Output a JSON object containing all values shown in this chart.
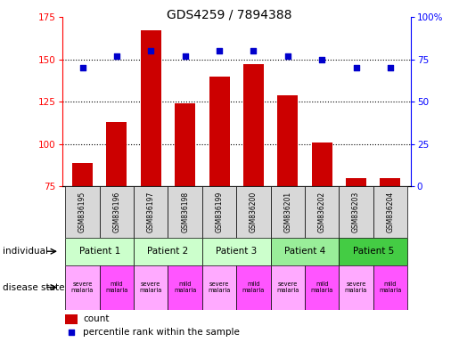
{
  "title": "GDS4259 / 7894388",
  "samples": [
    "GSM836195",
    "GSM836196",
    "GSM836197",
    "GSM836198",
    "GSM836199",
    "GSM836200",
    "GSM836201",
    "GSM836202",
    "GSM836203",
    "GSM836204"
  ],
  "counts": [
    89,
    113,
    167,
    124,
    140,
    147,
    129,
    101,
    80,
    80
  ],
  "percentiles": [
    70,
    77,
    80,
    77,
    80,
    80,
    77,
    75,
    70,
    70
  ],
  "ymin": 75,
  "ymax": 175,
  "yticks_left": [
    75,
    100,
    125,
    150,
    175
  ],
  "yticks_right": [
    0,
    25,
    50,
    75,
    100
  ],
  "bar_color": "#cc0000",
  "dot_color": "#0000cc",
  "patients": [
    {
      "label": "Patient 1",
      "cols": [
        0,
        1
      ],
      "color": "#ccffcc"
    },
    {
      "label": "Patient 2",
      "cols": [
        2,
        3
      ],
      "color": "#ccffcc"
    },
    {
      "label": "Patient 3",
      "cols": [
        4,
        5
      ],
      "color": "#ccffcc"
    },
    {
      "label": "Patient 4",
      "cols": [
        6,
        7
      ],
      "color": "#99ee99"
    },
    {
      "label": "Patient 5",
      "cols": [
        8,
        9
      ],
      "color": "#44cc44"
    }
  ],
  "disease_labels": [
    "severe\nmalaria",
    "mild\nmalaria",
    "severe\nmalaria",
    "mild\nmalaria",
    "severe\nmalaria",
    "mild\nmalaria",
    "severe\nmalaria",
    "mild\nmalaria",
    "severe\nmalaria",
    "mild\nmalaria"
  ],
  "disease_severe_color": "#ffaaff",
  "disease_mild_color": "#ff55ff",
  "sample_box_color": "#d8d8d8",
  "individual_label": "individual",
  "disease_label": "disease state",
  "legend_count_label": "count",
  "legend_pct_label": "percentile rank within the sample",
  "arrow_color": "#555555"
}
